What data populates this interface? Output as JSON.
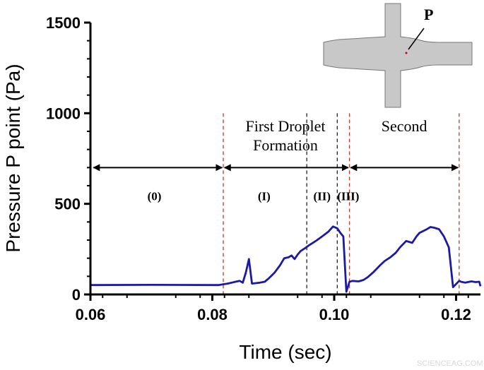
{
  "chart_data": {
    "type": "line",
    "xlabel": "Time (sec)",
    "ylabel": "Pressure P point (Pa)",
    "xlim": [
      0.06,
      0.124
    ],
    "ylim": [
      0,
      1500
    ],
    "xticks": [
      "0.06",
      "0.08",
      "0.10",
      "0.12"
    ],
    "yticks": [
      "0",
      "500",
      "1000",
      "1500"
    ],
    "grid": false,
    "series": [
      {
        "color": "#1a1aa6",
        "x": [
          0.06,
          0.07,
          0.081,
          0.0818,
          0.0825,
          0.0832,
          0.0838,
          0.0845,
          0.085,
          0.0855,
          0.086,
          0.0865,
          0.087,
          0.0878,
          0.0886,
          0.0893,
          0.0902,
          0.0911,
          0.0918,
          0.0925,
          0.093,
          0.0935,
          0.094,
          0.0945,
          0.0952,
          0.0958,
          0.0965,
          0.0972,
          0.098,
          0.099,
          0.0998,
          0.1005,
          0.101,
          0.1015,
          0.102,
          0.1025,
          0.103,
          0.104,
          0.1048,
          0.1055,
          0.1065,
          0.1075,
          0.1083,
          0.1092,
          0.1101,
          0.1108,
          0.1118,
          0.1128,
          0.1135,
          0.114,
          0.1146,
          0.1152,
          0.1158,
          0.1164,
          0.1172,
          0.118,
          0.1188,
          0.1195,
          0.1205,
          0.1208,
          0.1215,
          0.1225,
          0.1232,
          0.1238,
          0.124
        ],
        "y": [
          52,
          53,
          52,
          56,
          60,
          65,
          70,
          75,
          65,
          120,
          195,
          60,
          62,
          65,
          70,
          90,
          120,
          160,
          200,
          205,
          215,
          195,
          220,
          240,
          255,
          270,
          285,
          300,
          320,
          345,
          375,
          365,
          340,
          320,
          15,
          70,
          75,
          72,
          80,
          95,
          125,
          160,
          185,
          205,
          230,
          260,
          295,
          285,
          320,
          340,
          350,
          360,
          372,
          368,
          360,
          320,
          260,
          40,
          75,
          70,
          65,
          72,
          68,
          70,
          45
        ]
      }
    ],
    "dividers": [
      {
        "x": 0.0818,
        "style": "red-dashed"
      },
      {
        "x": 0.0955,
        "style": "black-dashed"
      },
      {
        "x": 0.1005,
        "style": "black-dashed"
      },
      {
        "x": 0.1025,
        "style": "red-dashed"
      },
      {
        "x": 0.1205,
        "style": "red-dashed"
      }
    ],
    "arrows": [
      {
        "from": 0.0605,
        "to": 0.0816,
        "y": 700
      },
      {
        "from": 0.082,
        "to": 0.1023,
        "y": 700
      },
      {
        "from": 0.1027,
        "to": 0.1203,
        "y": 700
      }
    ],
    "annotations": [
      {
        "text": "First Droplet",
        "x": 0.092,
        "y": 900,
        "style": "serif"
      },
      {
        "text": "Formation",
        "x": 0.092,
        "y": 795,
        "style": "serif"
      },
      {
        "text": "Second",
        "x": 0.1115,
        "y": 900,
        "style": "serif"
      },
      {
        "text": "(0)",
        "x": 0.0705,
        "y": 520,
        "style": "phase"
      },
      {
        "text": "(I)",
        "x": 0.0885,
        "y": 520,
        "style": "phase"
      },
      {
        "text": "(II)",
        "x": 0.098,
        "y": 520,
        "style": "phase"
      },
      {
        "text": "(III)",
        "x": 0.1023,
        "y": 520,
        "style": "phase"
      }
    ],
    "inset": {
      "label": "P"
    }
  },
  "watermark": "SCIENCEAG.COM"
}
